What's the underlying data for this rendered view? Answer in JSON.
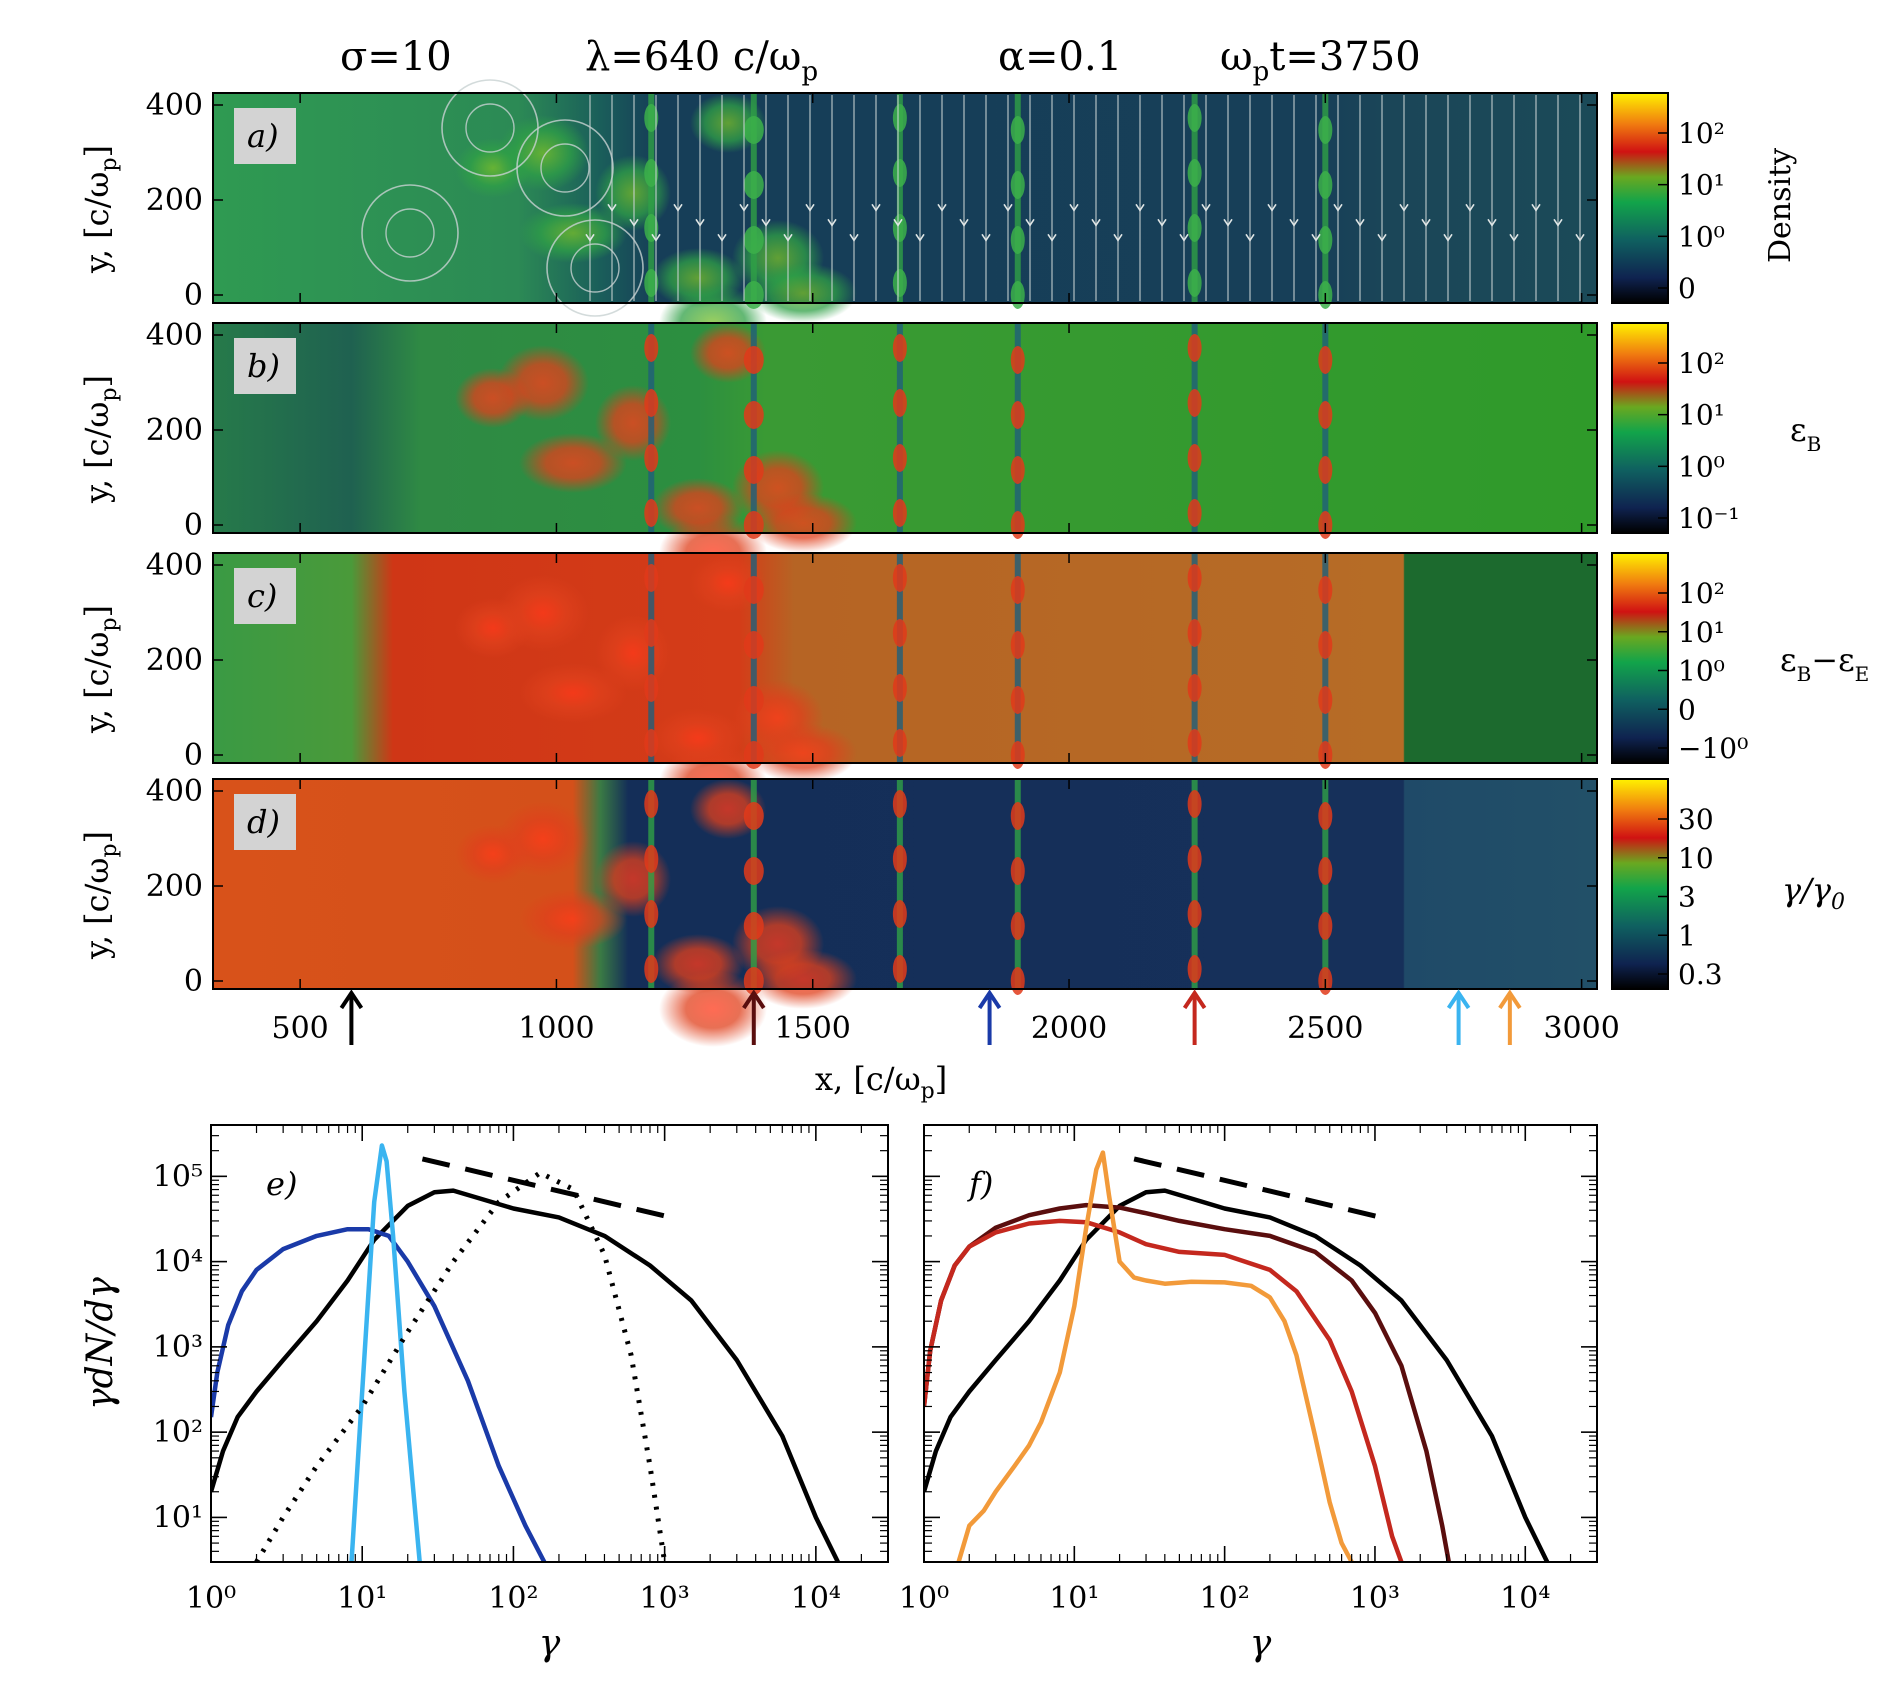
{
  "header": {
    "sigma": "σ=10",
    "lambda": "λ=640  c/ω",
    "lambda_sub": "p",
    "alpha": "α=0.1",
    "time_pre": "ω",
    "time_sub": "p",
    "time_post": "t=3750"
  },
  "maps": {
    "ylabel": "y,  [c/ω",
    "ylabel_sub": "p",
    "ylabel_close": "]",
    "yticks": [
      "0",
      "200",
      "400"
    ],
    "xticks": [
      "500",
      "1000",
      "1500",
      "2000",
      "2500",
      "3000"
    ],
    "xlabel": "x,  [c/ω",
    "xlabel_sub": "p",
    "xlabel_close": "]",
    "panels": [
      {
        "label": "a)",
        "cbar_title": "Density",
        "cbar_ticks": [
          "10²",
          "10¹",
          "10⁰",
          "0"
        ]
      },
      {
        "label": "b)",
        "cbar_title": "ε",
        "cbar_title_sub": "B",
        "cbar_ticks": [
          "10²",
          "10¹",
          "10⁰",
          "10⁻¹"
        ]
      },
      {
        "label": "c)",
        "cbar_title": "ε",
        "cbar_title_sub": "B",
        "cbar_title_mid": "−ε",
        "cbar_title_sub2": "E",
        "cbar_ticks": [
          "10²",
          "10¹",
          "10⁰",
          "0",
          "−10⁰"
        ]
      },
      {
        "label": "d)",
        "cbar_title": "γ/γ",
        "cbar_title_sub": "0",
        "cbar_ticks": [
          "30",
          "10",
          "3",
          "1",
          "0.3"
        ]
      }
    ],
    "arrows": [
      {
        "x": 600,
        "color": "#000000"
      },
      {
        "x": 1385,
        "color": "#5a0e0e"
      },
      {
        "x": 1845,
        "color": "#1a3aa8"
      },
      {
        "x": 2245,
        "color": "#c4281e"
      },
      {
        "x": 2760,
        "color": "#3ab4f0"
      },
      {
        "x": 2860,
        "color": "#f29a3a"
      }
    ]
  },
  "chart_data": [
    {
      "type": "line",
      "panel": "e)",
      "xlabel": "γ",
      "ylabel": "γdN/dγ",
      "xscale": "log",
      "yscale": "log",
      "xlim": [
        1,
        30000
      ],
      "ylim": [
        3,
        400000
      ],
      "xticks": [
        "10⁰",
        "10¹",
        "10²",
        "10³",
        "10⁴"
      ],
      "yticks": [
        "10¹",
        "10²",
        "10³",
        "10⁴",
        "10⁵"
      ],
      "series": [
        {
          "name": "black",
          "color": "#000000",
          "style": "solid",
          "x": [
            1,
            1.2,
            1.5,
            2,
            3,
            5,
            8,
            12,
            20,
            30,
            40,
            60,
            100,
            200,
            400,
            800,
            1500,
            3000,
            6000,
            10000,
            14000
          ],
          "y": [
            20,
            60,
            150,
            300,
            700,
            2000,
            6000,
            18000,
            45000,
            65000,
            68000,
            55000,
            42000,
            33000,
            20000,
            9000,
            3500,
            700,
            90,
            10,
            3
          ]
        },
        {
          "name": "blue",
          "color": "#1a3aa8",
          "style": "solid",
          "x": [
            1,
            1.1,
            1.3,
            1.6,
            2,
            3,
            5,
            8,
            11,
            15,
            20,
            30,
            50,
            80,
            120,
            160
          ],
          "y": [
            150,
            500,
            1800,
            4500,
            8000,
            14000,
            20000,
            24000,
            24000,
            20000,
            10000,
            3000,
            400,
            40,
            8,
            3
          ]
        },
        {
          "name": "light-blue",
          "color": "#3ab4f0",
          "style": "solid",
          "x": [
            8.5,
            10,
            12,
            13.5,
            14.5,
            16,
            19,
            24
          ],
          "y": [
            3,
            300,
            50000,
            230000,
            150000,
            20000,
            300,
            3
          ]
        },
        {
          "name": "dotted",
          "color": "#000000",
          "style": "dotted",
          "x": [
            2,
            3,
            5,
            10,
            20,
            40,
            80,
            150,
            250,
            400,
            600,
            800,
            1000
          ],
          "y": [
            3,
            10,
            40,
            200,
            1500,
            10000,
            50000,
            110000,
            70000,
            12000,
            800,
            40,
            3
          ]
        },
        {
          "name": "dashed",
          "color": "#000000",
          "style": "dashed",
          "x": [
            25,
            1100
          ],
          "y": [
            160000,
            33000
          ]
        }
      ]
    },
    {
      "type": "line",
      "panel": "f)",
      "xlabel": "γ",
      "xscale": "log",
      "yscale": "log",
      "xlim": [
        1,
        30000
      ],
      "ylim": [
        3,
        400000
      ],
      "xticks": [
        "10⁰",
        "10¹",
        "10²",
        "10³",
        "10⁴"
      ],
      "series": [
        {
          "name": "black",
          "color": "#000000",
          "style": "solid",
          "x": [
            1,
            1.2,
            1.5,
            2,
            3,
            5,
            8,
            12,
            20,
            30,
            40,
            60,
            100,
            200,
            400,
            800,
            1500,
            3000,
            6000,
            10000,
            14000
          ],
          "y": [
            20,
            60,
            150,
            300,
            700,
            2000,
            6000,
            18000,
            45000,
            65000,
            68000,
            55000,
            42000,
            33000,
            20000,
            9000,
            3500,
            700,
            90,
            10,
            3
          ]
        },
        {
          "name": "dark-red",
          "color": "#5a0e0e",
          "style": "solid",
          "x": [
            1,
            1.1,
            1.3,
            1.6,
            2,
            3,
            5,
            8,
            12,
            20,
            30,
            50,
            100,
            200,
            400,
            700,
            1000,
            1500,
            2200,
            2800,
            3100
          ],
          "y": [
            200,
            900,
            3500,
            9000,
            15000,
            25000,
            35000,
            42000,
            46000,
            43000,
            37000,
            30000,
            24000,
            20000,
            13000,
            6000,
            2500,
            600,
            60,
            8,
            3
          ]
        },
        {
          "name": "red",
          "color": "#c4281e",
          "style": "solid",
          "x": [
            1,
            1.1,
            1.3,
            1.6,
            2,
            3,
            5,
            8,
            12,
            20,
            30,
            50,
            100,
            200,
            300,
            500,
            700,
            1000,
            1300,
            1500
          ],
          "y": [
            200,
            900,
            3500,
            9000,
            15000,
            22000,
            28000,
            30000,
            29000,
            22000,
            16000,
            13000,
            12000,
            8000,
            4500,
            1200,
            300,
            40,
            6,
            3
          ]
        },
        {
          "name": "orange",
          "color": "#f29a3a",
          "style": "solid",
          "x": [
            1.7,
            2,
            2.5,
            3,
            4,
            5,
            6,
            8,
            10,
            12,
            14,
            15.5,
            17,
            20,
            25,
            30,
            40,
            60,
            100,
            150,
            200,
            250,
            300,
            400,
            500,
            600,
            700
          ],
          "y": [
            3,
            8,
            12,
            20,
            40,
            70,
            130,
            500,
            3000,
            25000,
            120000,
            190000,
            60000,
            10000,
            6500,
            6000,
            5500,
            5800,
            5700,
            5200,
            3800,
            2000,
            800,
            90,
            15,
            5,
            3
          ]
        },
        {
          "name": "dashed",
          "color": "#000000",
          "style": "dashed",
          "x": [
            25,
            1100
          ],
          "y": [
            160000,
            33000
          ]
        }
      ]
    }
  ]
}
